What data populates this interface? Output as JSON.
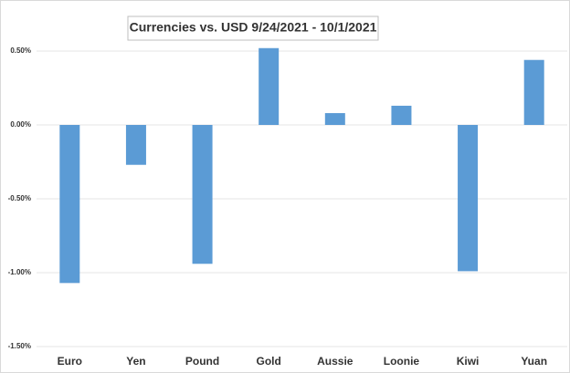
{
  "chart_data": {
    "type": "bar",
    "title": "Currencies vs. USD 9/24/2021 - 10/1/2021",
    "categories": [
      "Euro",
      "Yen",
      "Pound",
      "Gold",
      "Aussie",
      "Loonie",
      "Kiwi",
      "Yuan"
    ],
    "values": [
      -1.07,
      -0.27,
      -0.94,
      0.52,
      0.08,
      0.13,
      -0.99,
      0.44
    ],
    "color": "#5b9bd5",
    "ylim": [
      -1.5,
      0.6
    ],
    "yticks": [
      {
        "value": 0.5,
        "label": "0.50%"
      },
      {
        "value": 0,
        "label": "0.00%"
      },
      {
        "value": -0.5,
        "label": "-0.50%"
      },
      {
        "value": -1,
        "label": "-1.00%"
      },
      {
        "value": -1.5,
        "label": "-1.50%"
      }
    ],
    "grid": true
  }
}
